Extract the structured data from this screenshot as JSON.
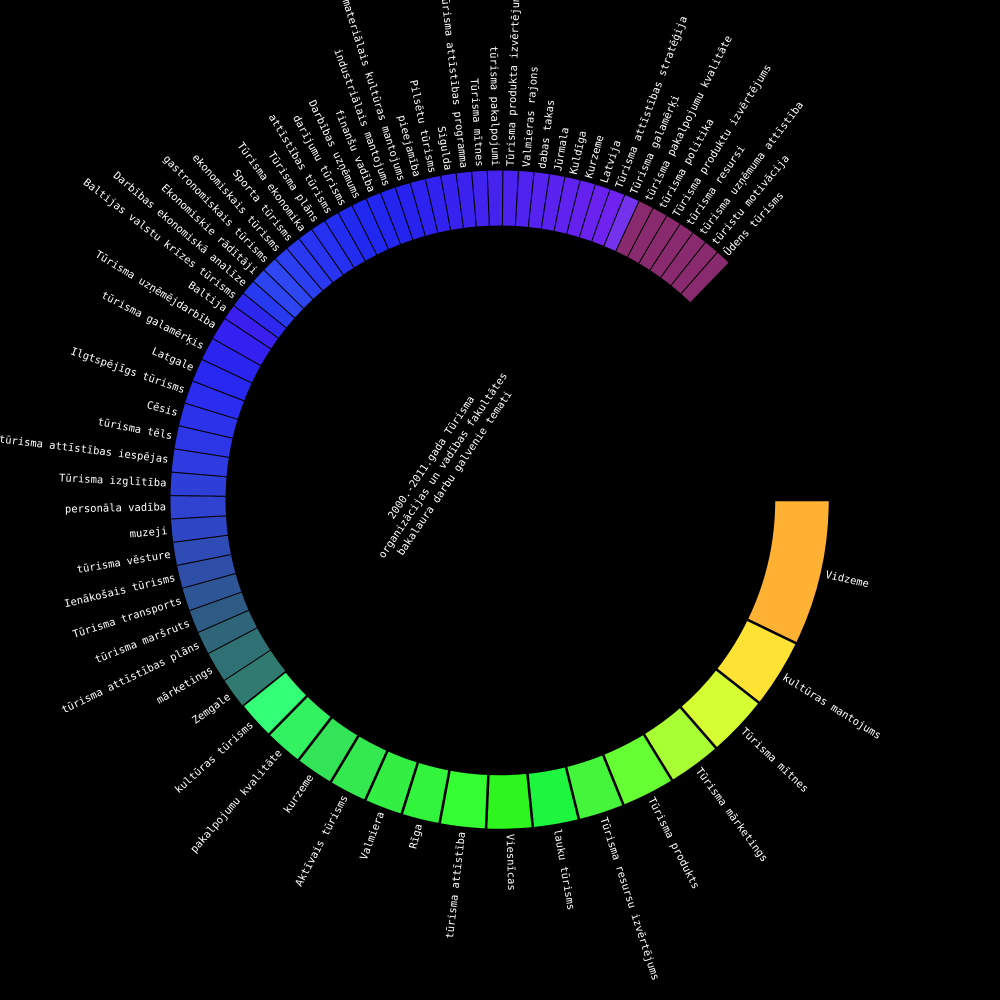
{
  "chart_data": {
    "type": "radial-bar",
    "title_lines": [
      "2000.-2011.gada Tūrisma",
      "organizācijas un vadības fakultātes",
      "bakalaura darbu galvenie temati"
    ],
    "categories": [
      "Vidzeme",
      "kultūras mantojums",
      "Tūrisma mītnes",
      "Tūrisma mārketings",
      "Tūrisma produkts",
      "Tūrisma resursu izvērtējums",
      "lauku tūrisms",
      "Viesnīcas",
      "tūrisma attīstība",
      "Rīga",
      "Valmiera",
      "Aktīvais tūrisms",
      "kurzeme",
      "pakalpojumu kvalitāte",
      "kultūras tūrisms",
      "Zemgale",
      "mārketings",
      "tūrisma attīstības plāns",
      "tūrisma maršruts",
      "Tūrisma transports",
      "Ienākošais tūrisms",
      "tūrisma vēsture",
      "muzeji",
      "personāla vadība",
      "Tūrisma izglītība",
      "tūrisma attīstības iespējas",
      "tūrisma tēls",
      "Cēsis",
      "Ilgtspējīgs tūrisms",
      "Latgale",
      "tūrisma galamērķis",
      "Tūrisma uzņēmējdarbība",
      "Baltija",
      "Baltijas valstu krīzes tūrisms",
      "Darbības ekonomiskā analīze",
      "Ekonomiskie rādītāji",
      "gastronomiskais tūrisms",
      "ekonomiskais tūrisms",
      "Sporta tūrisms",
      "Tūrisma ekonomika",
      "Tūrisma plāns",
      "attīstības tūrisms",
      "darījumu tūrisms",
      "Darbības uzņēmums",
      "finanšu vadība",
      "industriālais mantojums",
      "Nemateriālais kultūras mantojums",
      "pieejamība",
      "Pilsētu tūrisms",
      "Sigulda",
      "Tūrisma attīstības programma",
      "Tūrisma mītnes",
      "tūrisma pakalpojumi",
      "Tūrisma produkta izvērtējums",
      "Valmieras rajons",
      "dabas takas",
      "Jūrmala",
      "Kuldīga",
      "Kurzeme",
      "Latvija",
      "Tūrisma attīstības stratēģija",
      "Tūrisma galamērķi",
      "tūrisma pakalpojumu kvalitāte",
      "tūrisma politika",
      "Tūrisma produktu izvērtējums",
      "tūrisma resursi",
      "tūrisma uzņēmuma attīstība",
      "tūristu motivācija",
      "Ūdens tūrisms"
    ],
    "values": [
      19,
      9,
      8,
      7,
      7,
      6,
      6,
      6,
      6,
      5,
      5,
      5,
      5,
      5,
      5,
      4,
      4,
      3,
      3,
      3,
      3,
      3,
      3,
      3,
      3,
      3,
      3,
      3,
      3,
      3,
      3,
      3,
      2,
      2,
      2,
      2,
      2,
      2,
      2,
      2,
      2,
      2,
      2,
      2,
      2,
      2,
      2,
      2,
      2,
      2,
      2,
      2,
      2,
      2,
      2,
      2,
      2,
      2,
      2,
      2,
      2,
      2,
      2,
      2,
      2,
      2,
      2,
      2,
      2
    ],
    "colors": {
      "background": "#000000",
      "first_segment": "#ffb133",
      "last_segments": "#8a2a6e",
      "separator": "#000000",
      "label": "#ffffff"
    },
    "label_colors": [
      "#ffb133",
      "#ffe233",
      "#d6ff33",
      "#a8ff33",
      "#66ff33",
      "#44f53c",
      "#1ef53e",
      "#2ef51d",
      "#35ff32",
      "#33f43c",
      "#33ee43",
      "#34e950",
      "#33e458",
      "#33f261",
      "#33ff77",
      "#317a70",
      "#2f7075",
      "#2e6579",
      "#2e5b84",
      "#2e5595",
      "#2f4ea8",
      "#2f4bb5",
      "#2f46c4",
      "#2f42d0",
      "#2e3fd8",
      "#2e3be0",
      "#2d36e6",
      "#2c31ea",
      "#2a2df0",
      "#2828f0",
      "#2a24ee",
      "#3420f0",
      "#3a1fef",
      "#2d28ef",
      "#283af0",
      "#2d45f0",
      "#2f47f2",
      "#2c3ef2",
      "#2a38f1",
      "#2834f1",
      "#2530f1",
      "#232df0",
      "#2229ef",
      "#2028ef",
      "#2226ef",
      "#2424ef",
      "#2822ef",
      "#2d22ef",
      "#3222ef",
      "#3722ef",
      "#3c22ef",
      "#4122ef",
      "#4622ef",
      "#4b22ef",
      "#5022ef",
      "#5522ef",
      "#5a22ef",
      "#6022ef",
      "#6522ef",
      "#6a22ef",
      "#7022ef",
      "#7532ec",
      "#8a2a6e",
      "#8a2a6e",
      "#8a2a6e",
      "#8a2a6e",
      "#8a2a6e",
      "#8a2a6e",
      "#8a2a6e"
    ]
  }
}
